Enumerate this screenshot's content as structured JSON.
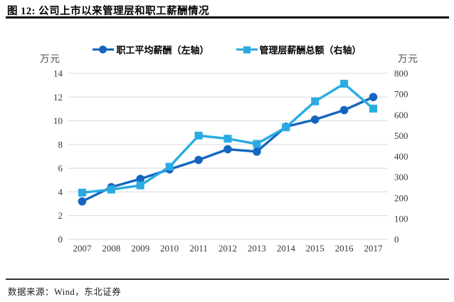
{
  "figure": {
    "title": "图 12: 公司上市以来管理层和职工薪酬情况",
    "source": "数据来源：Wind，东北证券"
  },
  "chart_data": {
    "type": "line",
    "title": "公司上市以来管理层和职工薪酬情况",
    "categories": [
      "2007",
      "2008",
      "2009",
      "2010",
      "2011",
      "2012",
      "2013",
      "2014",
      "2015",
      "2016",
      "2017"
    ],
    "series": [
      {
        "name": "职工平均薪酬（左轴）",
        "axis": "left",
        "marker": "circle",
        "color": "#1565C0",
        "values": [
          3.2,
          4.4,
          5.1,
          5.9,
          6.7,
          7.6,
          7.4,
          9.5,
          10.1,
          10.9,
          12.0
        ]
      },
      {
        "name": "管理层薪酬总额（右轴）",
        "axis": "right",
        "marker": "square",
        "color": "#29ABE2",
        "values": [
          225,
          240,
          260,
          350,
          500,
          485,
          460,
          540,
          665,
          750,
          630
        ]
      }
    ],
    "left_axis": {
      "unit": "万元",
      "min": 0,
      "max": 14,
      "step": 2,
      "ticks": [
        "0",
        "2",
        "4",
        "6",
        "8",
        "10",
        "12",
        "14"
      ]
    },
    "right_axis": {
      "unit": "万元",
      "min": 0,
      "max": 800,
      "step": 100,
      "ticks": [
        "0",
        "100",
        "200",
        "300",
        "400",
        "500",
        "600",
        "700",
        "800"
      ]
    },
    "grid": true,
    "gridline_color": "#d9d9d9",
    "legend_position": "top"
  }
}
